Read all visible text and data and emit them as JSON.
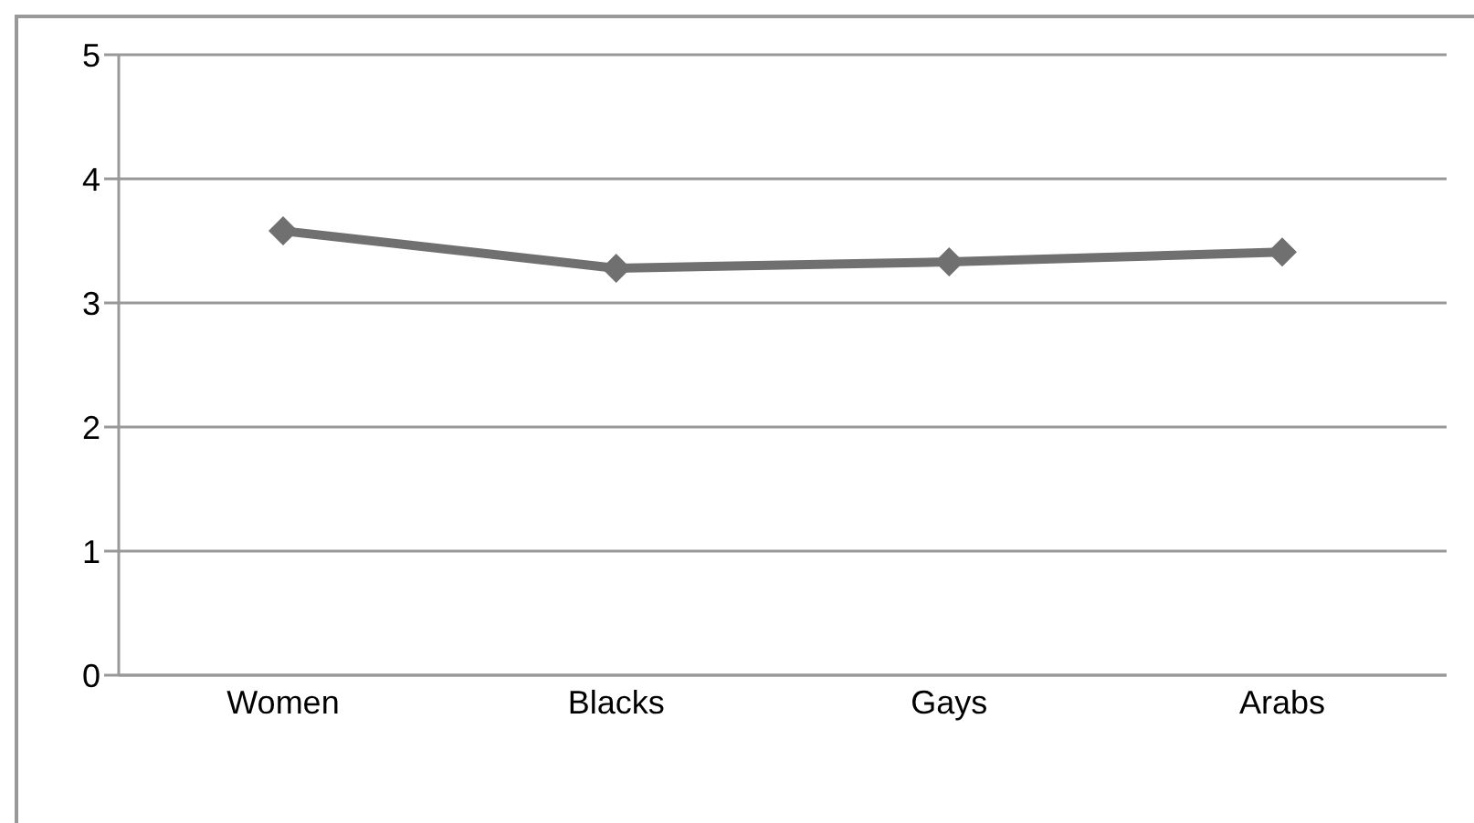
{
  "chart_data": {
    "type": "line",
    "categories": [
      "Women",
      "Blacks",
      "Gays",
      "Arabs"
    ],
    "series": [
      {
        "color": "#707070",
        "values": [
          3.58,
          3.28,
          3.33,
          3.41
        ]
      }
    ],
    "ylim": [
      0,
      5
    ],
    "yticks": [
      0,
      1,
      2,
      3,
      4,
      5
    ],
    "grid": "y",
    "marker": "diamond",
    "line_style": "solid"
  }
}
